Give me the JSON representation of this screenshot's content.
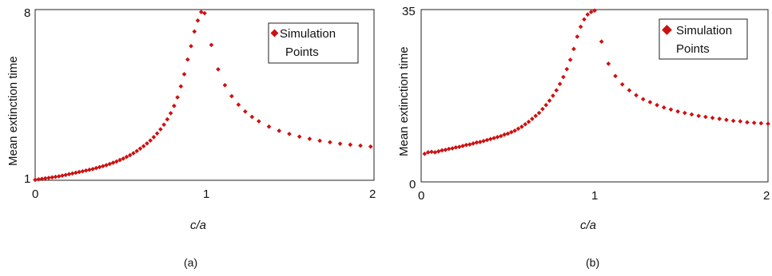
{
  "chart_data": [
    {
      "type": "scatter",
      "panel_label": "(a)",
      "xlabel": "c/a",
      "ylabel": "Mean extinction time",
      "xlim": [
        0,
        2
      ],
      "ylim": [
        1,
        8
      ],
      "xticks": [
        "0",
        "1",
        "2"
      ],
      "yticks": [
        "1",
        "8"
      ],
      "marker_color": "#cc1111",
      "legend": {
        "label_line1": "Simulation",
        "label_line2": "Points",
        "position": "top-right"
      },
      "series": [
        {
          "name": "Simulation Points",
          "x": [
            0.0,
            0.02,
            0.04,
            0.06,
            0.08,
            0.1,
            0.12,
            0.14,
            0.16,
            0.18,
            0.2,
            0.22,
            0.24,
            0.26,
            0.28,
            0.3,
            0.32,
            0.34,
            0.36,
            0.38,
            0.4,
            0.42,
            0.44,
            0.46,
            0.48,
            0.5,
            0.52,
            0.54,
            0.56,
            0.58,
            0.6,
            0.62,
            0.64,
            0.66,
            0.68,
            0.7,
            0.72,
            0.74,
            0.76,
            0.78,
            0.8,
            0.82,
            0.84,
            0.86,
            0.88,
            0.9,
            0.92,
            0.94,
            0.96,
            0.98,
            1.0,
            1.04,
            1.08,
            1.12,
            1.16,
            1.2,
            1.24,
            1.28,
            1.32,
            1.38,
            1.44,
            1.5,
            1.56,
            1.62,
            1.68,
            1.74,
            1.8,
            1.86,
            1.92,
            1.98
          ],
          "y": [
            1.02,
            1.04,
            1.06,
            1.08,
            1.1,
            1.12,
            1.14,
            1.16,
            1.19,
            1.22,
            1.25,
            1.28,
            1.31,
            1.34,
            1.37,
            1.4,
            1.43,
            1.46,
            1.5,
            1.54,
            1.58,
            1.62,
            1.67,
            1.72,
            1.77,
            1.83,
            1.89,
            1.96,
            2.03,
            2.11,
            2.2,
            2.3,
            2.4,
            2.51,
            2.63,
            2.77,
            2.92,
            3.09,
            3.28,
            3.5,
            3.75,
            4.05,
            4.4,
            4.85,
            5.35,
            5.95,
            6.5,
            7.1,
            7.55,
            7.9,
            7.85,
            6.55,
            5.55,
            4.9,
            4.45,
            4.1,
            3.82,
            3.6,
            3.42,
            3.2,
            3.03,
            2.9,
            2.79,
            2.7,
            2.62,
            2.56,
            2.5,
            2.46,
            2.42,
            2.38
          ]
        }
      ]
    },
    {
      "type": "scatter",
      "panel_label": "(b)",
      "xlabel": "c/a",
      "ylabel": "Mean extinction time",
      "xlim": [
        0,
        2
      ],
      "ylim": [
        0,
        35
      ],
      "xticks": [
        "0",
        "1",
        "2"
      ],
      "yticks": [
        "0",
        "35"
      ],
      "marker_color": "#cc1111",
      "legend": {
        "label_line1": "Simulation",
        "label_line2": "Points",
        "position": "top-right"
      },
      "series": [
        {
          "name": "Simulation Points",
          "x": [
            0.02,
            0.04,
            0.06,
            0.08,
            0.1,
            0.12,
            0.14,
            0.16,
            0.18,
            0.2,
            0.22,
            0.24,
            0.26,
            0.28,
            0.3,
            0.32,
            0.34,
            0.36,
            0.38,
            0.4,
            0.42,
            0.44,
            0.46,
            0.48,
            0.5,
            0.52,
            0.54,
            0.56,
            0.58,
            0.6,
            0.62,
            0.64,
            0.66,
            0.68,
            0.7,
            0.72,
            0.74,
            0.76,
            0.78,
            0.8,
            0.82,
            0.84,
            0.86,
            0.88,
            0.9,
            0.92,
            0.94,
            0.96,
            0.98,
            1.0,
            1.04,
            1.08,
            1.12,
            1.16,
            1.2,
            1.24,
            1.28,
            1.32,
            1.36,
            1.4,
            1.44,
            1.48,
            1.52,
            1.56,
            1.6,
            1.64,
            1.68,
            1.72,
            1.76,
            1.8,
            1.84,
            1.88,
            1.92,
            1.96,
            2.0
          ],
          "y": [
            5.7,
            6.0,
            6.1,
            6.0,
            6.2,
            6.4,
            6.5,
            6.7,
            6.8,
            7.0,
            7.1,
            7.3,
            7.5,
            7.6,
            7.8,
            8.0,
            8.1,
            8.3,
            8.5,
            8.7,
            8.9,
            9.1,
            9.3,
            9.6,
            9.8,
            10.1,
            10.4,
            10.8,
            11.2,
            11.7,
            12.2,
            12.8,
            13.4,
            14.0,
            14.8,
            15.6,
            16.5,
            17.5,
            18.6,
            19.9,
            21.3,
            22.9,
            24.8,
            27.0,
            29.5,
            31.5,
            33.0,
            34.0,
            34.5,
            34.8,
            28.5,
            24.0,
            21.5,
            19.8,
            18.6,
            17.6,
            16.8,
            16.2,
            15.6,
            15.1,
            14.7,
            14.3,
            14.0,
            13.7,
            13.4,
            13.2,
            13.0,
            12.8,
            12.6,
            12.4,
            12.3,
            12.1,
            12.0,
            11.9,
            11.8
          ]
        }
      ]
    }
  ]
}
